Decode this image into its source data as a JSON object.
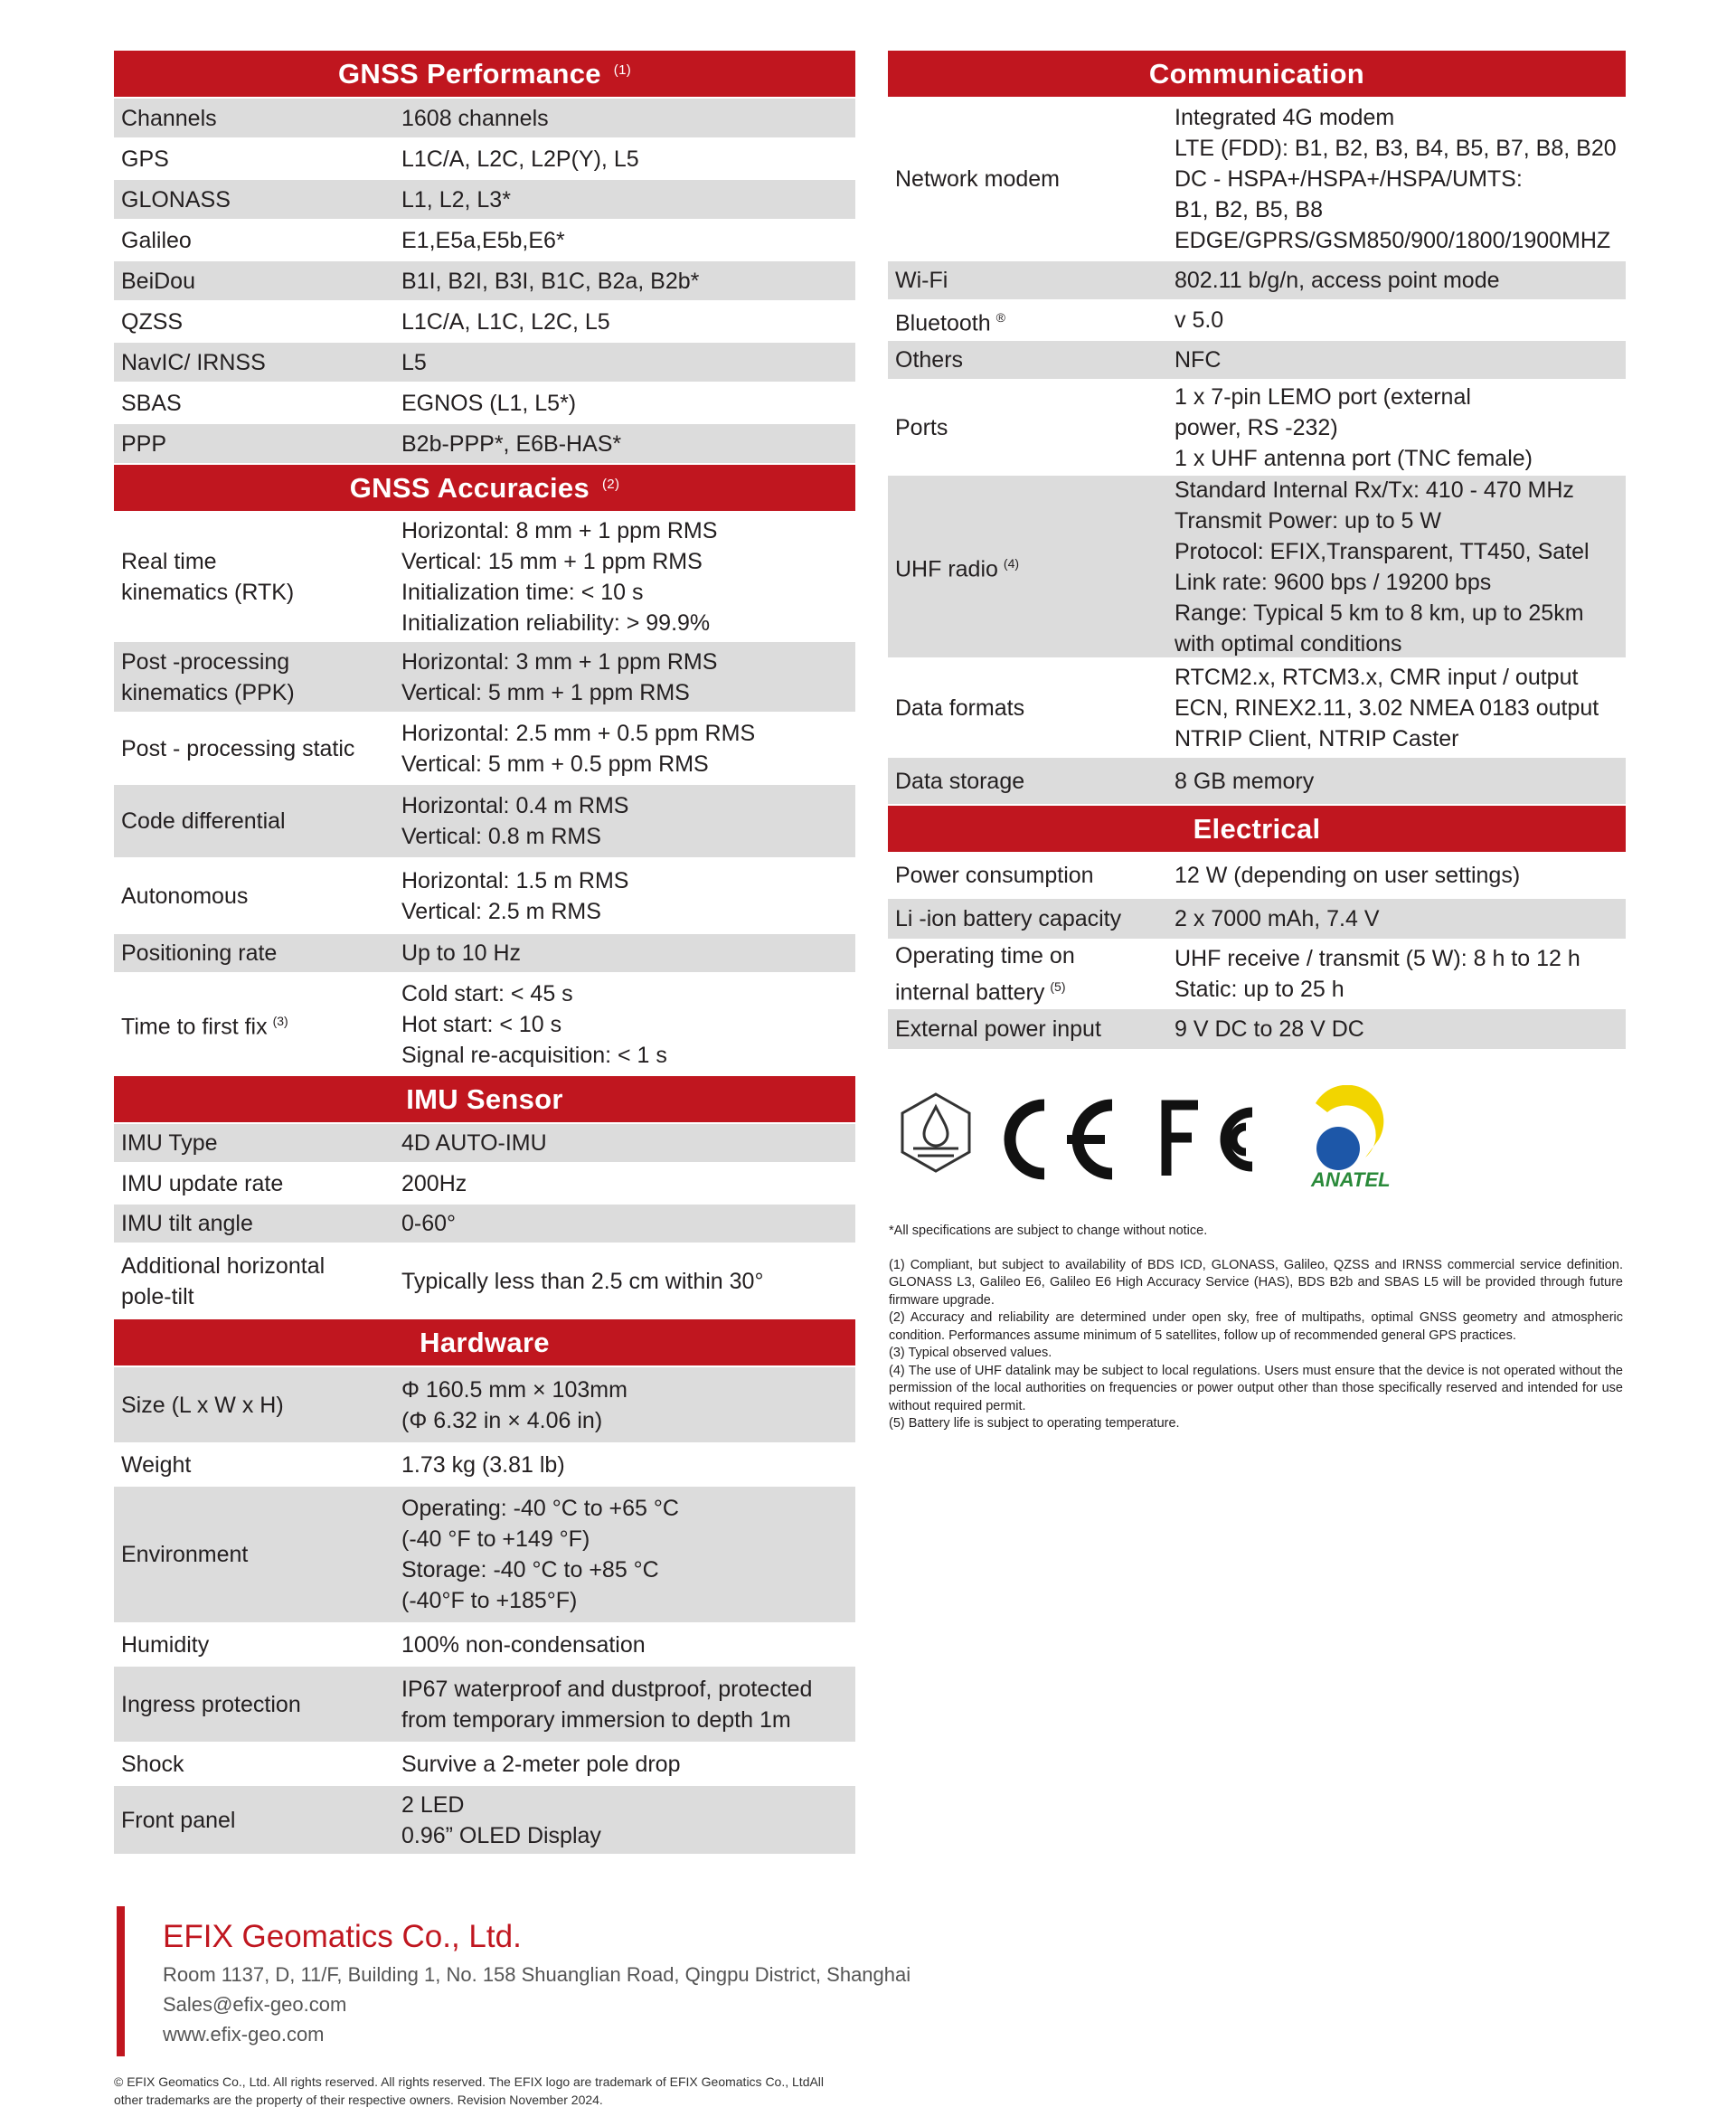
{
  "colors": {
    "brand_red": "#c0161f",
    "row_gray": "#dcdcdc",
    "text": "#231f20"
  },
  "left_sections": [
    {
      "title": "GNSS Performance",
      "note": "(1)",
      "rows": [
        {
          "label": [
            "Channels"
          ],
          "value": [
            "1608 channels"
          ]
        },
        {
          "label": [
            "GPS"
          ],
          "value": [
            "L1C/A, L2C, L2P(Y), L5"
          ]
        },
        {
          "label": [
            "GLONASS"
          ],
          "value": [
            "L1, L2, L3*"
          ]
        },
        {
          "label": [
            "Galileo"
          ],
          "value": [
            "E1,E5a,E5b,E6*"
          ]
        },
        {
          "label": [
            "BeiDou"
          ],
          "value": [
            "B1I, B2I, B3I, B1C, B2a, B2b*"
          ]
        },
        {
          "label": [
            "QZSS"
          ],
          "value": [
            "L1C/A, L1C, L2C, L5"
          ]
        },
        {
          "label": [
            "NavIC/ IRNSS"
          ],
          "value": [
            "L5"
          ]
        },
        {
          "label": [
            "SBAS"
          ],
          "value": [
            "EGNOS (L1, L5*)"
          ]
        },
        {
          "label": [
            "PPP"
          ],
          "value": [
            "B2b-PPP*, E6B-HAS*"
          ]
        }
      ]
    },
    {
      "title": "GNSS Accuracies",
      "note": "(2)",
      "rows": [
        {
          "label": [
            "Real time",
            "kinematics (RTK)"
          ],
          "value": [
            "Horizontal: 8 mm + 1 ppm RMS",
            "Vertical: 15 mm + 1 ppm RMS",
            "Initialization time: < 10 s",
            "Initialization reliability: > 99.9%"
          ]
        },
        {
          "label": [
            "Post -processing",
            "kinematics (PPK)"
          ],
          "value": [
            "Horizontal: 3 mm + 1 ppm RMS",
            "Vertical: 5 mm + 1 ppm RMS"
          ]
        },
        {
          "label": [
            "Post - processing static"
          ],
          "value": [
            "Horizontal: 2.5 mm + 0.5 ppm RMS",
            "Vertical: 5 mm + 0.5 ppm RMS"
          ]
        },
        {
          "label": [
            "Code differential"
          ],
          "value": [
            "Horizontal: 0.4 m RMS",
            "Vertical: 0.8 m RMS"
          ]
        },
        {
          "label": [
            "Autonomous"
          ],
          "value": [
            "Horizontal: 1.5 m RMS",
            "Vertical: 2.5 m RMS"
          ]
        },
        {
          "label": [
            "Positioning rate"
          ],
          "value": [
            "Up to 10 Hz"
          ]
        },
        {
          "label": [
            "Time to first fix"
          ],
          "note": "(3)",
          "value": [
            "Cold start: < 45 s",
            "Hot start: < 10 s",
            "Signal re-acquisition: < 1 s"
          ]
        }
      ]
    },
    {
      "title": "IMU Sensor",
      "note": "",
      "rows": [
        {
          "label": [
            "IMU Type"
          ],
          "value": [
            "4D AUTO-IMU"
          ]
        },
        {
          "label": [
            "IMU update rate"
          ],
          "value": [
            "200Hz"
          ]
        },
        {
          "label": [
            "IMU tilt angle"
          ],
          "value": [
            "0-60°"
          ]
        },
        {
          "label": [
            "Additional horizontal",
            "pole-tilt"
          ],
          "value": [
            "Typically less than 2.5 cm within 30°"
          ]
        }
      ]
    },
    {
      "title": "Hardware",
      "note": "",
      "rows": [
        {
          "label": [
            "Size (L x W x H)"
          ],
          "value": [
            "Φ 160.5 mm × 103mm",
            "(Φ 6.32 in × 4.06 in)"
          ]
        },
        {
          "label": [
            "Weight"
          ],
          "value": [
            "1.73 kg (3.81 lb)"
          ]
        },
        {
          "label": [
            "Environment"
          ],
          "value": [
            "Operating: -40 °C to +65 °C",
            "(-40 °F to +149 °F)",
            "Storage: -40 °C to +85 °C",
            "(-40°F to +185°F)"
          ]
        },
        {
          "label": [
            "Humidity"
          ],
          "value": [
            "100% non-condensation"
          ]
        },
        {
          "label": [
            "Ingress protection"
          ],
          "value": [
            "IP67 waterproof and dustproof, protected",
            "from temporary immersion to depth 1m"
          ]
        },
        {
          "label": [
            "Shock"
          ],
          "value": [
            "Survive a 2-meter pole drop"
          ]
        },
        {
          "label": [
            "Front panel"
          ],
          "value": [
            "2 LED",
            "0.96” OLED Display"
          ]
        }
      ]
    }
  ],
  "right_sections": [
    {
      "title": "Communication",
      "note": "",
      "rows": [
        {
          "label": [
            "Network modem"
          ],
          "value": [
            "Integrated 4G modem",
            "LTE (FDD): B1, B2, B3, B4, B5, B7, B8, B20",
            "DC - HSPA+/HSPA+/HSPA/UMTS:",
            "B1, B2, B5, B8",
            "EDGE/GPRS/GSM850/900/1800/1900MHZ"
          ]
        },
        {
          "label": [
            "Wi-Fi"
          ],
          "value": [
            "802.11 b/g/n, access point mode"
          ]
        },
        {
          "label": [
            "Bluetooth"
          ],
          "note": "®",
          "value": [
            "v 5.0"
          ]
        },
        {
          "label": [
            "Others"
          ],
          "value": [
            "NFC"
          ]
        },
        {
          "label": [
            "Ports"
          ],
          "value": [
            "1 x 7-pin LEMO port (external",
            "power, RS -232)",
            "1 x UHF antenna port (TNC female)"
          ]
        },
        {
          "label": [
            "UHF radio"
          ],
          "note": "(4)",
          "value": [
            "Standard Internal Rx/Tx: 410 - 470 MHz",
            "Transmit Power: up to 5 W",
            "Protocol: EFIX,Transparent, TT450, Satel",
            "Link rate: 9600 bps / 19200 bps",
            "Range: Typical 5 km to 8 km, up to 25km",
            "with optimal conditions"
          ]
        },
        {
          "label": [
            "Data formats"
          ],
          "value": [
            "RTCM2.x, RTCM3.x, CMR input / output",
            "ECN, RINEX2.11, 3.02 NMEA 0183 output",
            "NTRIP Client, NTRIP Caster"
          ]
        },
        {
          "label": [
            "Data storage"
          ],
          "value": [
            "8 GB memory"
          ]
        }
      ]
    },
    {
      "title": "Electrical",
      "note": "",
      "rows": [
        {
          "label": [
            "Power consumption"
          ],
          "value": [
            "12 W (depending on user settings)"
          ]
        },
        {
          "label": [
            "Li -ion battery capacity"
          ],
          "value": [
            "2 x 7000 mAh, 7.4 V"
          ]
        },
        {
          "label": [
            "Operating time on",
            "internal battery"
          ],
          "note": "(5)",
          "value": [
            "UHF receive / transmit (5 W): 8 h to 12 h",
            "Static: up to 25 h"
          ]
        },
        {
          "label": [
            "External power input"
          ],
          "value": [
            "9 V DC to 28 V DC"
          ]
        }
      ]
    }
  ],
  "logos": {
    "items": [
      "ip-rating-icon",
      "ce-mark-icon",
      "fcc-mark-icon",
      "anatel-logo"
    ],
    "anatel_text": "ANATEL"
  },
  "notes": {
    "disclaimer": "*All specifications are subject to change without notice.",
    "footnotes": [
      "(1) Compliant, but subject to availability of BDS ICD, GLONASS, Galileo, QZSS and IRNSS commercial service definition. GLONASS L3, Galileo E6, Galileo E6 High Accuracy Service (HAS), BDS B2b and SBAS L5 will be provided through future firmware upgrade.",
      "(2) Accuracy and reliability are determined under open sky, free of multipaths, optimal GNSS geometry and atmospheric condition. Performances assume minimum of 5 satellites, follow up of recommended general GPS practices.",
      "(3) Typical observed values.",
      "(4) The use of UHF datalink may be subject to local regulations. Users must ensure that the device is not operated without the permission of the local authorities on frequencies or power output other than those specifically reserved and intended for use without required permit.",
      "(5) Battery life is subject to operating temperature."
    ]
  },
  "footer": {
    "company": "EFIX Geomatics Co., Ltd.",
    "address": "Room 1137, D, 11/F, Building 1, No. 158 Shuanglian Road, Qingpu District, Shanghai",
    "email": "Sales@efix-geo.com",
    "website": "www.efix-geo.com",
    "copyright_1": "© EFIX Geomatics Co., Ltd. All rights reserved. All rights reserved. The EFIX logo are trademark of EFIX Geomatics Co., LtdAll",
    "copyright_2": "other trademarks are the property of their respective owners. Revision November 2024."
  }
}
